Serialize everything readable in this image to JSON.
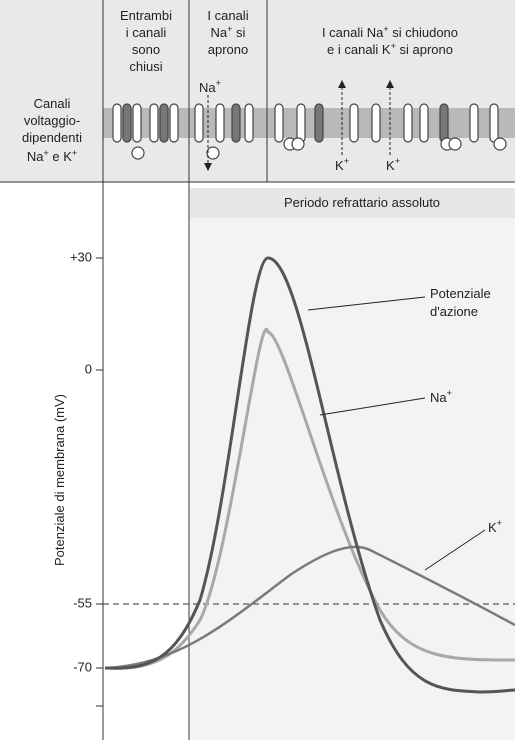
{
  "membrane": {
    "row_title": [
      "Canali",
      "voltaggio-",
      "dipendenti"
    ],
    "row_title_last": [
      "Na",
      "+",
      " e K",
      "+"
    ]
  },
  "columns": {
    "closed": [
      "Entrambi",
      "i canali",
      "sono",
      "chiusi"
    ],
    "na_open": {
      "first": "I canali",
      "na": [
        "Na",
        "+",
        " si"
      ],
      "last": "aprono"
    },
    "k_open": {
      "line1": [
        "I canali Na",
        "+",
        " si chiudono"
      ],
      "line2": [
        "e i canali K",
        "+",
        " si aprono"
      ]
    }
  },
  "ion_labels": {
    "na_in": [
      "Na",
      "+"
    ],
    "k_out_1": [
      "K",
      "+"
    ],
    "k_out_2": [
      "K",
      "+"
    ]
  },
  "refractory": "Periodo refrattario assoluto",
  "y_axis_title": "Potenziale di membrana (mV)",
  "yticks": [
    "+30",
    "0",
    "-55",
    "-70"
  ],
  "curves": {
    "action": [
      "Potenziale",
      "d'azione"
    ],
    "na": [
      "Na",
      "+"
    ],
    "k": [
      "K",
      "+"
    ]
  }
}
